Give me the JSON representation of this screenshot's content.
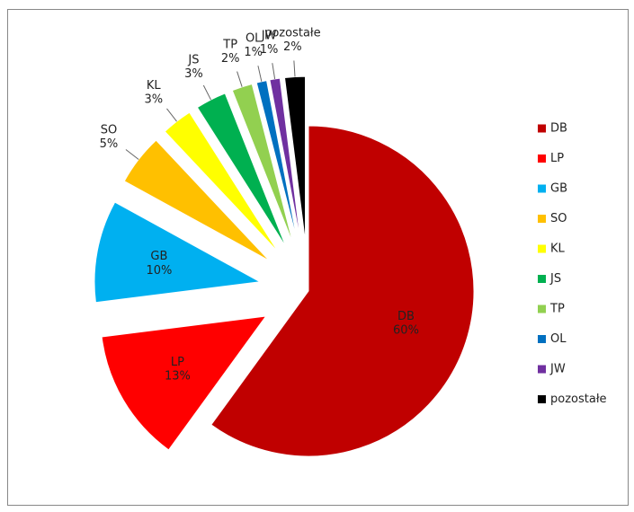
{
  "chart_data": {
    "type": "pie",
    "categories": [
      "DB",
      "LP",
      "GB",
      "SO",
      "KL",
      "JS",
      "TP",
      "OL",
      "JW",
      "pozostałe"
    ],
    "values": [
      60,
      13,
      10,
      5,
      3,
      3,
      2,
      1,
      1,
      2
    ],
    "value_labels": [
      "60%",
      "13%",
      "10%",
      "5%",
      "3%",
      "3%",
      "2%",
      "1%",
      "1%",
      "2%"
    ],
    "colors": [
      "#c00000",
      "#ff0000",
      "#00b0f0",
      "#ffc000",
      "#ffff00",
      "#00b050",
      "#92d050",
      "#0070c0",
      "#7030a0",
      "#000000"
    ],
    "legend": "right"
  }
}
